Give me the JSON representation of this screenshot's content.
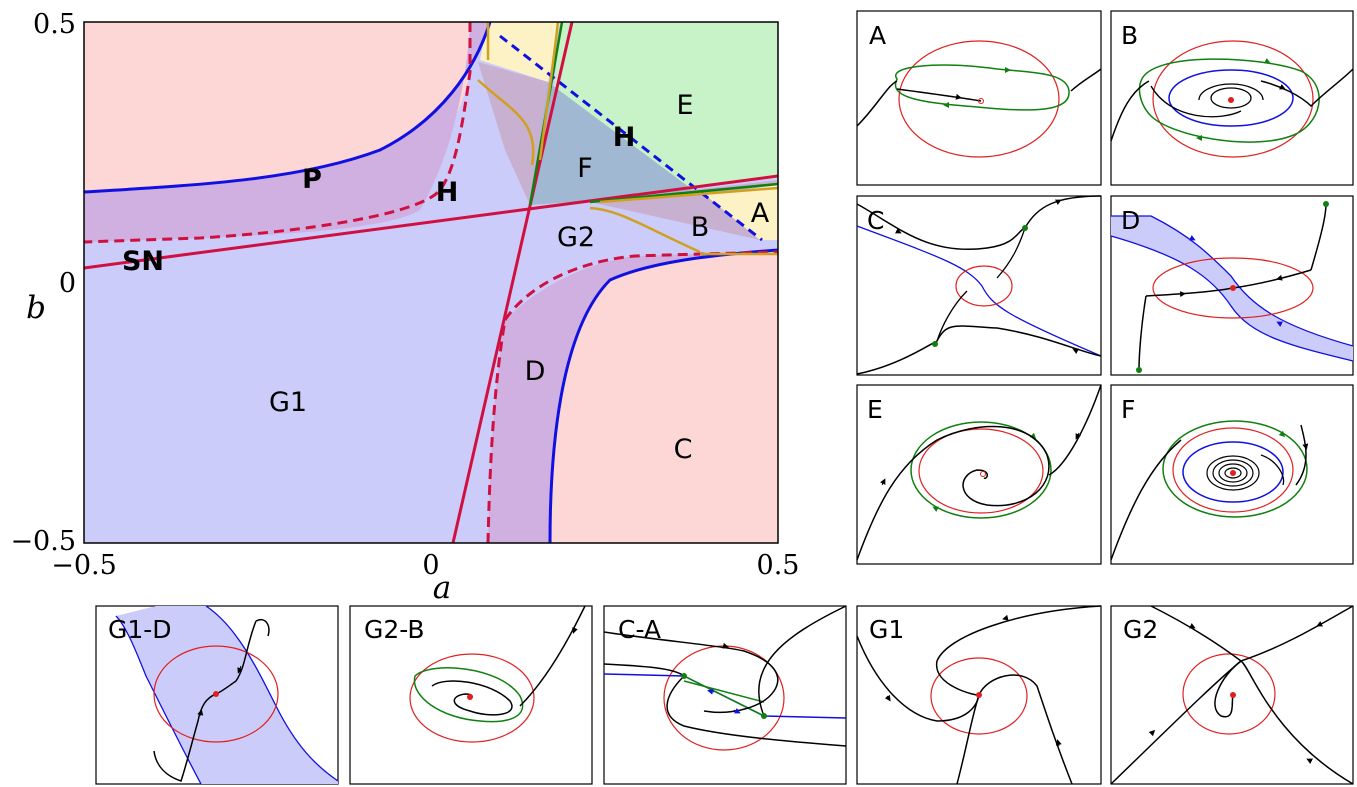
{
  "main_plot": {
    "x_ticks": [
      "−0.5",
      "0",
      "0.5"
    ],
    "y_ticks": [
      "0.5",
      "0",
      "−0.5"
    ],
    "xlabel": "a",
    "ylabel": "b",
    "region_labels": {
      "E": "E",
      "F": "F",
      "A": "A",
      "B": "B",
      "G2": "G2",
      "D": "D",
      "C": "C",
      "G1": "G1"
    },
    "curve_labels": {
      "P": "P",
      "H_left": "H",
      "H_right": "H",
      "SN": "SN"
    }
  },
  "panels": {
    "A": "A",
    "B": "B",
    "C": "C",
    "D": "D",
    "E": "E",
    "F": "F",
    "G1D": "G1-D",
    "G2B": "G2-B",
    "CA": "C-A",
    "G1": "G1",
    "G2": "G2"
  },
  "colors": {
    "region_pink": "#fdd6d6",
    "region_blue": "#ccccfa",
    "region_purple": "#d0b0e0",
    "region_green": "#c8f2c8",
    "region_yellow": "#fdf2c6",
    "region_teal": "#a0b8d2",
    "curve_blue": "#1010e0",
    "curve_red": "#d01040",
    "curve_green": "#108010",
    "curve_gold": "#d0a020"
  }
}
